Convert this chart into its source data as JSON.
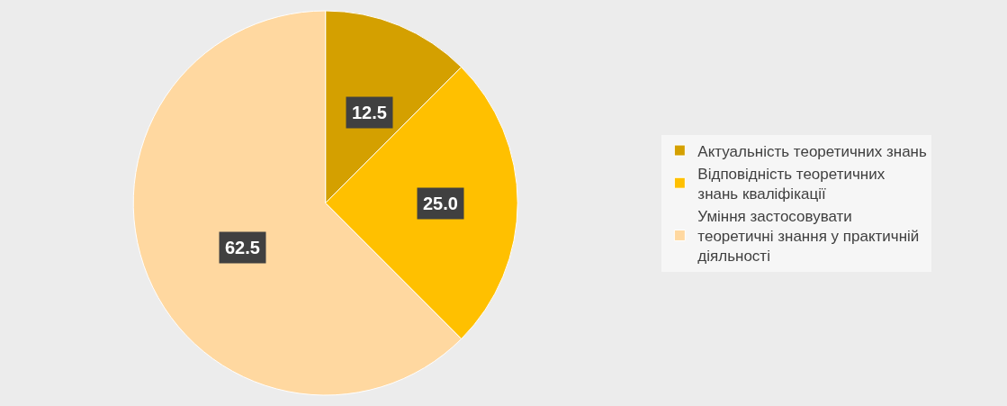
{
  "chart_data": {
    "type": "pie",
    "categories": [
      "Актуальність теоретичних знань",
      "Відповідність теоретичних знань кваліфікації",
      "Уміння застосовувати теоретичні знання у практичній діяльності"
    ],
    "values": [
      12.5,
      25.0,
      62.5
    ],
    "value_labels": [
      "12.5",
      "25.0",
      "62.5"
    ],
    "colors": [
      "#d4a000",
      "#ffc000",
      "#ffd8a0"
    ],
    "legend": "right"
  }
}
